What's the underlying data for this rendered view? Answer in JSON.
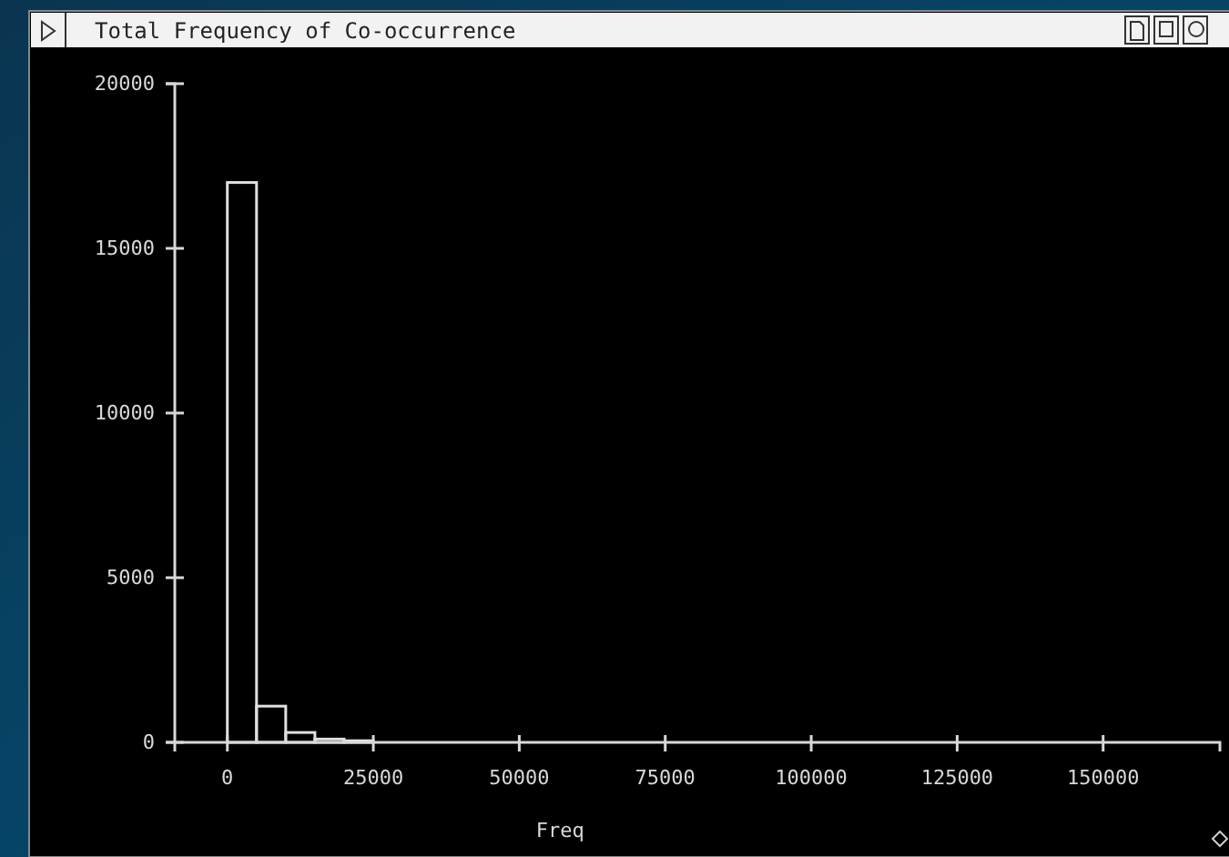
{
  "chart_data": {
    "type": "histogram",
    "title": "Total Frequency of Co-occurrence",
    "xlabel": "Freq",
    "bins": [
      0,
      5000,
      10000,
      15000,
      20000,
      25000
    ],
    "values": [
      17000,
      1100,
      300,
      100,
      50
    ],
    "color": "#e0e0e0",
    "xlim": [
      -9000,
      170000
    ],
    "xticks": [
      0,
      25000,
      50000,
      75000,
      100000,
      125000,
      150000
    ],
    "ylim": [
      0,
      20000
    ],
    "yticks": [
      0,
      5000,
      10000,
      15000,
      20000
    ],
    "grid": false
  }
}
